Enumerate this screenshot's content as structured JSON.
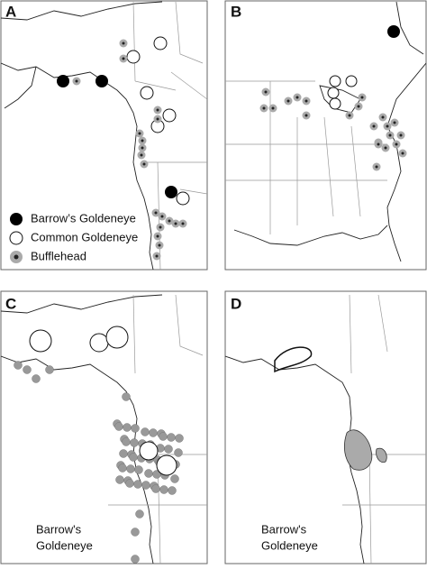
{
  "panels": [
    {
      "label": "A",
      "legend": [
        {
          "label": "Barrow’s Goldeneye"
        },
        {
          "label": "Common Goldeneye"
        },
        {
          "label": "Bufflehead"
        }
      ]
    },
    {
      "label": "B"
    },
    {
      "label": "C",
      "caption": [
        "Barrow's",
        "Goldeneye"
      ]
    },
    {
      "label": "D",
      "caption": [
        "Barrow's",
        "Goldeneye"
      ]
    }
  ]
}
